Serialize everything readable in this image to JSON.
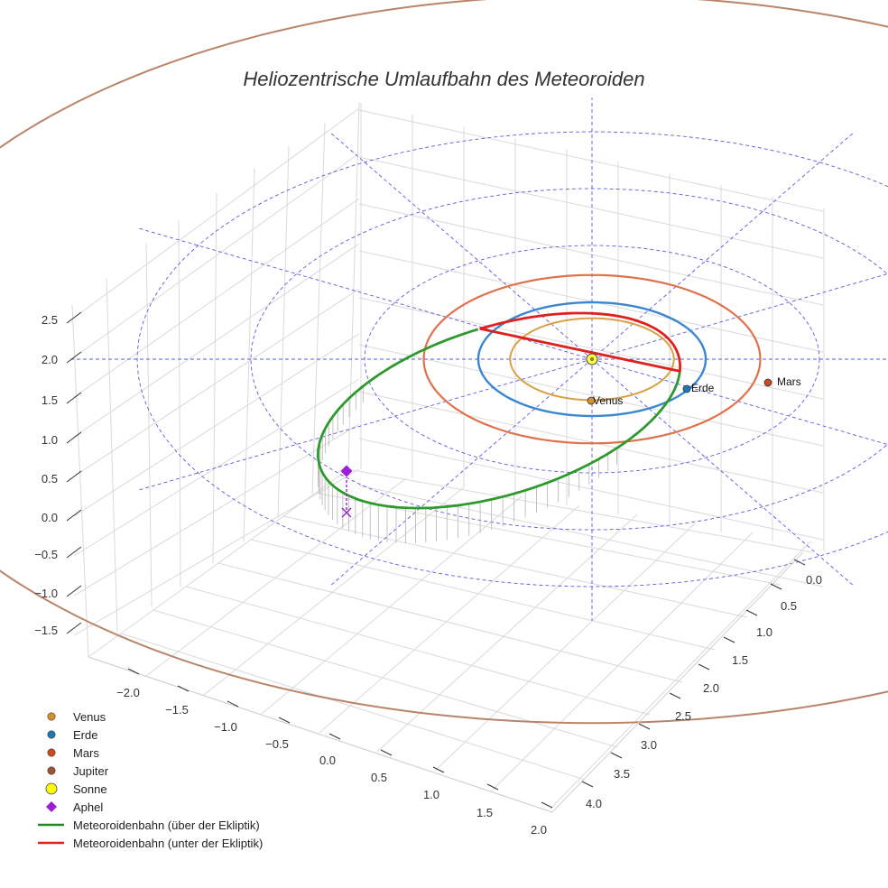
{
  "chart_data": {
    "type": "line",
    "title": "Heliozentrische Umlaufbahn des Meteoroiden",
    "z_ticks": [
      "2.5",
      "2.0",
      "1.5",
      "1.0",
      "0.5",
      "0.0",
      "−0.5",
      "−1.0",
      "−1.5"
    ],
    "x_ticks": [
      "−2.0",
      "−1.5",
      "−1.0",
      "−0.5",
      "0.0",
      "0.5",
      "1.0",
      "1.5",
      "2.0"
    ],
    "y_ticks": [
      "0.0",
      "0.5",
      "1.0",
      "1.5",
      "2.0",
      "2.5",
      "3.0",
      "3.5",
      "4.0"
    ],
    "planets": [
      {
        "name": "Venus",
        "label": "Venus",
        "color": "#d8902a"
      },
      {
        "name": "Erde",
        "label": "Erde",
        "color": "#1f77b4"
      },
      {
        "name": "Mars",
        "label": "Mars",
        "color": "#cc4a1e"
      }
    ],
    "orbit_colors": {
      "venus": "#d9a045",
      "erde": "#3a86d0",
      "mars": "#e0714a",
      "jupiter": "#b8856a",
      "meteoroid_above": "#2e9a2e",
      "meteoroid_below": "#e0201e",
      "ecliptic_grid": "#5a5ae0",
      "aphel": "#9b1fd6"
    },
    "legend": [
      {
        "label": "Venus",
        "kind": "dot",
        "color": "#d8902a"
      },
      {
        "label": "Erde",
        "kind": "dot",
        "color": "#1f77b4"
      },
      {
        "label": "Mars",
        "kind": "dot",
        "color": "#cc4a1e"
      },
      {
        "label": "Jupiter",
        "kind": "dot",
        "color": "#a0522d"
      },
      {
        "label": "Sonne",
        "kind": "big-dot",
        "color": "#ffff00"
      },
      {
        "label": "Aphel",
        "kind": "diamond",
        "color": "#9b1fd6"
      },
      {
        "label": "Meteoroidenbahn (über der Ekliptik)",
        "kind": "line",
        "color": "#1e8c1e"
      },
      {
        "label": "Meteoroidenbahn (unter der Ekliptik)",
        "kind": "line",
        "color": "#e0201e"
      }
    ]
  }
}
